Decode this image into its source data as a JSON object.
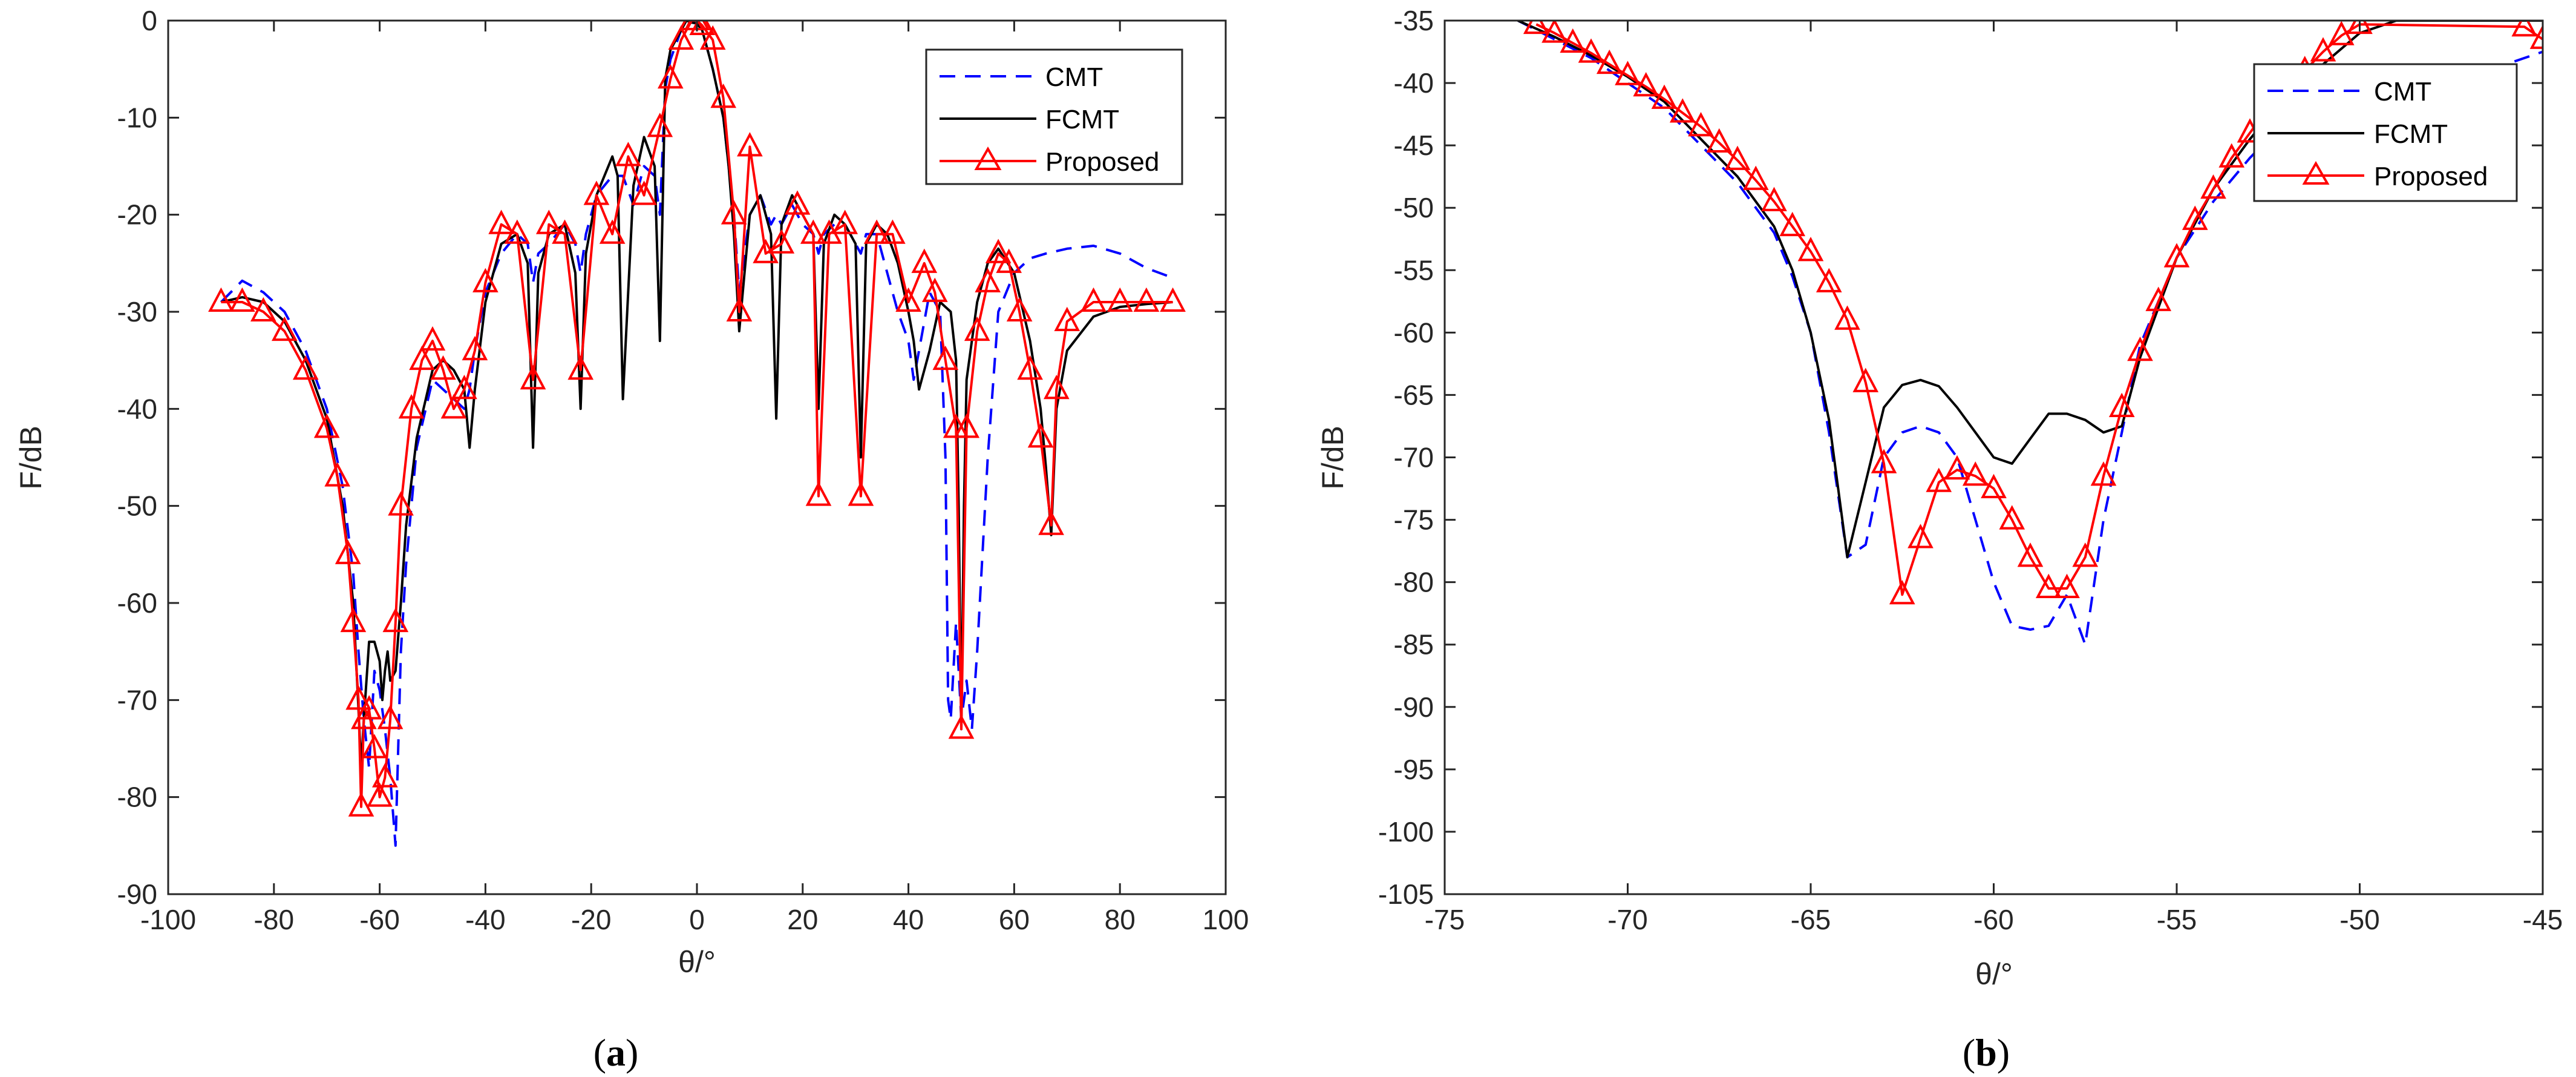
{
  "colors": {
    "cmt": "#0000ff",
    "fcmt": "#000000",
    "proposed": "#ff0000",
    "axes": "#262626"
  },
  "charts": [
    {
      "id": "a",
      "panel_label_open": "(",
      "panel_label_letter": "a",
      "panel_label_close": ")",
      "chart_data": {
        "type": "line",
        "xlabel": "θ/°",
        "ylabel": "F/dB",
        "xlim": [
          -100,
          100
        ],
        "ylim": [
          -90,
          0
        ],
        "xticks": [
          -100,
          -80,
          -60,
          -40,
          -20,
          0,
          20,
          40,
          60,
          80,
          100
        ],
        "yticks": [
          0,
          -10,
          -20,
          -30,
          -40,
          -50,
          -60,
          -70,
          -80,
          -90
        ],
        "xtick_labels": [
          "-100",
          "-80",
          "-60",
          "-40",
          "-20",
          "0",
          "20",
          "40",
          "60",
          "80",
          "100"
        ],
        "ytick_labels": [
          "0",
          "-10",
          "-20",
          "-30",
          "-40",
          "-50",
          "-60",
          "-70",
          "-80",
          "-90"
        ],
        "legend_position": "top-right",
        "series": [
          {
            "name": "CMT",
            "style": "dashed",
            "x": [
              -90,
              -86,
              -82,
              -78,
              -74,
              -70,
              -67,
              -65,
              -64,
              -63,
              -62,
              -61,
              -60,
              -59,
              -58,
              -57,
              -56,
              -55,
              -53,
              -50,
              -48,
              -46,
              -44,
              -43,
              -42,
              -40,
              -37,
              -34,
              -32,
              -31,
              -30,
              -28,
              -25,
              -23,
              -22,
              -21,
              -19,
              -16,
              -15,
              -14,
              -12,
              -10,
              -8,
              -7,
              -6,
              -5,
              -3,
              -2,
              -1,
              0,
              1,
              2,
              3,
              5,
              6,
              7,
              8,
              10,
              12,
              14,
              15,
              16,
              18,
              20,
              22,
              23,
              24,
              26,
              28,
              30,
              31,
              32,
              34,
              36,
              38,
              40,
              41,
              42,
              44,
              46,
              47,
              47.5,
              48,
              49,
              50,
              51,
              52,
              53,
              55,
              57,
              60,
              63,
              66,
              70,
              75,
              80,
              85,
              90
            ],
            "y": [
              -29,
              -26.8,
              -28,
              -30,
              -34,
              -40,
              -48,
              -57,
              -65,
              -72,
              -77,
              -67,
              -69,
              -73,
              -78,
              -85,
              -65,
              -56,
              -44,
              -37,
              -38,
              -39,
              -40,
              -38,
              -34,
              -28,
              -24,
              -22,
              -23,
              -27,
              -24,
              -23,
              -21,
              -23,
              -26,
              -22,
              -18,
              -16,
              -16,
              -16,
              -19,
              -15,
              -16,
              -20,
              -7,
              -4,
              -1,
              0,
              -0.2,
              -0.3,
              -1,
              -3,
              -5,
              -10,
              -15,
              -20,
              -28,
              -20,
              -18,
              -21,
              -20,
              -21,
              -19,
              -21,
              -22,
              -24,
              -22,
              -21,
              -21,
              -23,
              -24,
              -22,
              -22,
              -26,
              -30,
              -33,
              -37,
              -34,
              -28,
              -30,
              -45,
              -70,
              -72,
              -62,
              -72,
              -68,
              -73,
              -65,
              -45,
              -30,
              -26,
              -24.5,
              -24,
              -23.5,
              -23.2,
              -24,
              -25.5,
              -26.5
            ]
          },
          {
            "name": "FCMT",
            "style": "solid",
            "x": [
              -90,
              -86,
              -82,
              -78,
              -74,
              -70,
              -67,
              -65,
              -64,
              -63.5,
              -63,
              -62,
              -61,
              -60,
              -59.5,
              -59,
              -58.5,
              -58,
              -57,
              -56,
              -55,
              -53,
              -50,
              -48,
              -46,
              -44,
              -43,
              -42,
              -40,
              -37,
              -34,
              -32,
              -31,
              -30,
              -28,
              -25,
              -23,
              -22,
              -21,
              -19,
              -16,
              -15,
              -14,
              -12,
              -10,
              -8,
              -7,
              -6,
              -5,
              -3,
              -2,
              -1,
              0,
              1,
              2,
              3,
              5,
              6,
              7,
              8,
              10,
              12,
              14,
              15,
              16,
              18,
              20,
              22,
              23,
              24,
              26,
              28,
              30,
              31,
              32,
              34,
              36,
              38,
              40,
              41,
              42,
              44,
              46,
              48,
              49,
              49.5,
              50,
              50.5,
              51,
              53,
              55,
              57,
              60,
              63,
              65,
              66,
              67,
              68,
              70,
              75,
              80,
              85,
              90
            ],
            "y": [
              -29,
              -28.5,
              -29,
              -31,
              -35,
              -41,
              -50,
              -60,
              -71,
              -77,
              -72,
              -64,
              -64,
              -66,
              -70,
              -67,
              -65,
              -68,
              -67,
              -60,
              -52,
              -43,
              -36,
              -35,
              -36,
              -38,
              -44,
              -38,
              -29,
              -23,
              -22,
              -25,
              -44,
              -26,
              -22,
              -21,
              -26,
              -40,
              -24,
              -18,
              -14,
              -16,
              -39,
              -17,
              -12,
              -15,
              -33,
              -6,
              -3,
              -1,
              0,
              -0.2,
              -0.3,
              -1,
              -3,
              -5,
              -10,
              -15,
              -22,
              -32,
              -20,
              -18,
              -22,
              -41,
              -21,
              -18,
              -20,
              -22,
              -40,
              -23,
              -20,
              -21,
              -23,
              -45,
              -23,
              -21,
              -22,
              -25,
              -30,
              -33,
              -38,
              -34,
              -29,
              -30,
              -35,
              -50,
              -73,
              -50,
              -37,
              -29,
              -25,
              -23.5,
              -26,
              -33,
              -40,
              -46,
              -53,
              -40,
              -34,
              -30.5,
              -29.5,
              -29.2,
              -29
            ]
          },
          {
            "name": "Proposed",
            "style": "solid-triangle",
            "x": [
              -90,
              -86,
              -82,
              -78,
              -74,
              -70,
              -68,
              -66,
              -65,
              -64,
              -63.5,
              -63,
              -62,
              -61,
              -60,
              -59,
              -58,
              -57,
              -56,
              -54,
              -52,
              -50,
              -48,
              -46,
              -44,
              -42,
              -40,
              -37,
              -34,
              -31,
              -28,
              -25,
              -22,
              -19,
              -16,
              -13,
              -10,
              -7,
              -5,
              -3,
              -1,
              0,
              1,
              3,
              5,
              7,
              8,
              10,
              13,
              16,
              19,
              22,
              23,
              25,
              28,
              31,
              34,
              37,
              40,
              43,
              45,
              47,
              49,
              50,
              51,
              53,
              55,
              57,
              59,
              61,
              63,
              65,
              67,
              68,
              70,
              75,
              80,
              85,
              90
            ],
            "y": [
              -29,
              -29,
              -30,
              -32,
              -36,
              -42,
              -47,
              -55,
              -62,
              -70,
              -81,
              -72,
              -71,
              -75,
              -80,
              -78,
              -72,
              -62,
              -50,
              -40,
              -35,
              -33,
              -36,
              -40,
              -38,
              -34,
              -27,
              -21,
              -22,
              -37,
              -21,
              -22,
              -36,
              -18,
              -22,
              -14,
              -18,
              -11,
              -6,
              -2,
              0,
              0,
              -0.5,
              -2,
              -8,
              -20,
              -30,
              -13,
              -24,
              -23,
              -19,
              -22,
              -49,
              -22,
              -21,
              -49,
              -22,
              -22,
              -29,
              -25,
              -28,
              -35,
              -42,
              -73,
              -42,
              -32,
              -27,
              -24,
              -25,
              -30,
              -36,
              -43,
              -52,
              -38,
              -31,
              -29,
              -29,
              -29,
              -29
            ]
          }
        ]
      }
    },
    {
      "id": "b",
      "panel_label_open": "(",
      "panel_label_letter": "b",
      "panel_label_close": ")",
      "chart_data": {
        "type": "line",
        "xlabel": "θ/°",
        "ylabel": "F/dB",
        "xlim": [
          -75,
          -45
        ],
        "ylim": [
          -105,
          -35
        ],
        "xticks": [
          -75,
          -70,
          -65,
          -60,
          -55,
          -50,
          -45
        ],
        "yticks": [
          -35,
          -40,
          -45,
          -50,
          -55,
          -60,
          -65,
          -70,
          -75,
          -80,
          -85,
          -90,
          -95,
          -100,
          -105
        ],
        "xtick_labels": [
          "-75",
          "-70",
          "-65",
          "-60",
          "-55",
          "-50",
          "-45"
        ],
        "ytick_labels": [
          "-35",
          "-40",
          "-45",
          "-50",
          "-55",
          "-60",
          "-65",
          "-70",
          "-75",
          "-80",
          "-85",
          "-90",
          "-95",
          "-100",
          "-105"
        ],
        "legend_position": "top-right",
        "series": [
          {
            "name": "CMT",
            "style": "dashed",
            "x": [
              -73,
              -72,
              -71,
              -70,
              -69,
              -68,
              -67,
              -66,
              -65.5,
              -65,
              -64.5,
              -64,
              -63.5,
              -63,
              -62.5,
              -62,
              -61.5,
              -61,
              -60.5,
              -60,
              -59.5,
              -59,
              -58.5,
              -58,
              -57.5,
              -57,
              -56.5,
              -56,
              -55,
              -54,
              -53,
              -52,
              -51,
              -50,
              -49,
              -48,
              -47,
              -46,
              -45
            ],
            "y": [
              -35,
              -36.5,
              -38,
              -40,
              -42,
              -45,
              -48,
              -52,
              -55.5,
              -60,
              -68,
              -78,
              -77,
              -70,
              -68,
              -67.5,
              -68,
              -70,
              -75,
              -80,
              -83.5,
              -83.8,
              -83.5,
              -81,
              -85,
              -75,
              -68,
              -61,
              -54,
              -49.5,
              -46,
              -43,
              -40.5,
              -39,
              -39,
              -39,
              -39,
              -38.5,
              -37.5
            ]
          },
          {
            "name": "FCMT",
            "style": "solid",
            "x": [
              -73,
              -72,
              -71,
              -70,
              -69,
              -68,
              -67,
              -66,
              -65.5,
              -65,
              -64.5,
              -64,
              -63.5,
              -63,
              -62.5,
              -62,
              -61.5,
              -61,
              -60.5,
              -60,
              -59.5,
              -59,
              -58.5,
              -58,
              -57.5,
              -57,
              -56.5,
              -56,
              -55,
              -54,
              -53,
              -52,
              -51,
              -50,
              -49,
              -48,
              -47,
              -46,
              -45
            ],
            "y": [
              -35,
              -36.3,
              -37.8,
              -39.5,
              -41.5,
              -44.5,
              -47.5,
              -51.5,
              -55,
              -60,
              -67,
              -78,
              -72,
              -66,
              -64.2,
              -63.8,
              -64.3,
              -66,
              -68,
              -70,
              -70.5,
              -68.5,
              -66.5,
              -66.5,
              -67,
              -68,
              -67.5,
              -62,
              -54,
              -48.5,
              -44.5,
              -41,
              -38.5,
              -36,
              -35,
              -35,
              -35,
              -35,
              -35
            ]
          },
          {
            "name": "Proposed",
            "style": "solid-triangle",
            "x": [
              -72.5,
              -72,
              -71.5,
              -71,
              -70.5,
              -70,
              -69.5,
              -69,
              -68.5,
              -68,
              -67.5,
              -67,
              -66.5,
              -66,
              -65.5,
              -65,
              -64.5,
              -64,
              -63.5,
              -63,
              -62.5,
              -62,
              -61.5,
              -61,
              -60.5,
              -60,
              -59.5,
              -59,
              -58.5,
              -58,
              -57.5,
              -57,
              -56.5,
              -56,
              -55.5,
              -55,
              -54.5,
              -54,
              -53.5,
              -53,
              -52.5,
              -52,
              -51.5,
              -51,
              -50.5,
              -50,
              -45.5,
              -45
            ],
            "y": [
              -35.3,
              -36,
              -36.8,
              -37.6,
              -38.5,
              -39.4,
              -40.3,
              -41.3,
              -42.4,
              -43.5,
              -44.8,
              -46.2,
              -47.8,
              -49.5,
              -51.5,
              -53.5,
              -56,
              -59,
              -64,
              -70.5,
              -81,
              -76.5,
              -72,
              -71,
              -71.5,
              -72.5,
              -75,
              -78,
              -80.5,
              -80.5,
              -78,
              -71.5,
              -66,
              -61.5,
              -57.5,
              -54,
              -51,
              -48.5,
              -46,
              -44,
              -42,
              -40.5,
              -39,
              -37.5,
              -36.2,
              -35.3,
              -35.5,
              -36.5
            ]
          }
        ]
      }
    }
  ]
}
